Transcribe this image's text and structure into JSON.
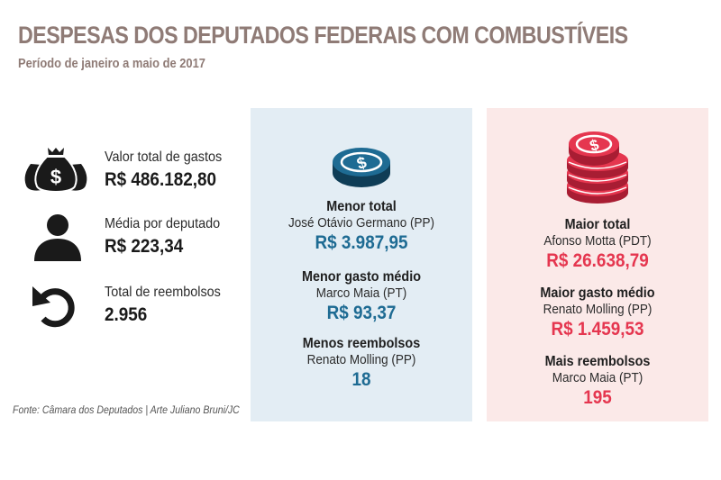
{
  "header": {
    "title": "DESPESAS DOS DEPUTADOS FEDERAIS COM COMBUSTÍVEIS",
    "subtitle": "Período de janeiro a maio de 2017"
  },
  "stats": [
    {
      "icon": "money-bags-icon",
      "label": "Valor total de gastos",
      "value": "R$ 486.182,80"
    },
    {
      "icon": "person-icon",
      "label": "Média por deputado",
      "value": "R$ 223,34"
    },
    {
      "icon": "refund-arrow-icon",
      "label": "Total de reembolsos",
      "value": "2.956"
    }
  ],
  "source": "Fonte: Câmara dos Deputados | Arte Juliano Bruni/JC",
  "lowest": {
    "icon": "single-coin-icon",
    "color": "#1e6b93",
    "items": [
      {
        "label": "Menor total",
        "name": "José Otávio Germano (PP)",
        "value": "R$ 3.987,95"
      },
      {
        "label": "Menor gasto médio",
        "name": "Marco Maia (PT)",
        "value": "R$ 93,37"
      },
      {
        "label": "Menos reembolsos",
        "name": "Renato Molling (PP)",
        "value": "18"
      }
    ]
  },
  "highest": {
    "icon": "coin-stack-icon",
    "color": "#e5364f",
    "items": [
      {
        "label": "Maior total",
        "name": "Afonso Motta (PDT)",
        "value": "R$ 26.638,79"
      },
      {
        "label": "Maior gasto médio",
        "name": "Renato Molling (PP)",
        "value": "R$ 1.459,53"
      },
      {
        "label": "Mais reembolsos",
        "name": "Marco Maia (PT)",
        "value": "195"
      }
    ]
  }
}
